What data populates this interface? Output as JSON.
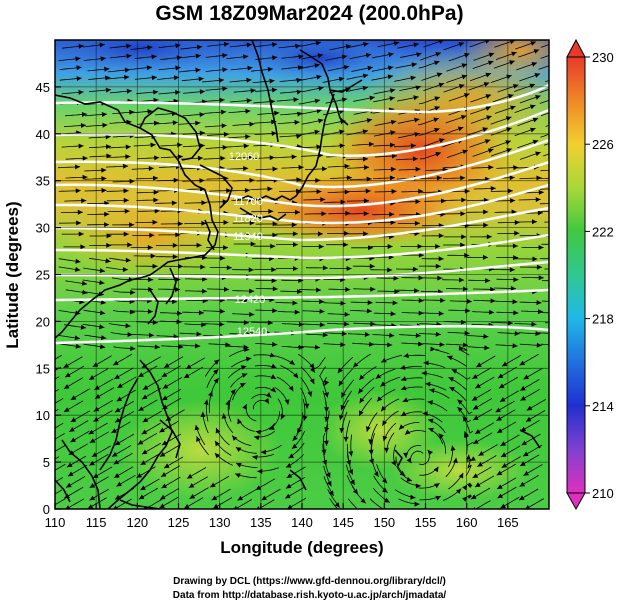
{
  "title": "GSM 18Z09Mar2024 (200.0hPa)",
  "xlabel": "Longitude (degrees)",
  "ylabel": "Latitude  (degrees)",
  "credit_line1": "Drawing by DCL (https://www.gfd-dennou.org/library/dcl/)",
  "credit_line2": "Data from http://database.rish.kyoto-u.ac.jp/arch/jmadata/",
  "colors": {
    "land_outline": "#000000",
    "contour": "#ffffff",
    "streamline": "#000000"
  },
  "chart_data": {
    "type": "heatmap",
    "xlim": [
      110,
      170
    ],
    "ylim": [
      0,
      50
    ],
    "x_ticks": [
      "110",
      "115",
      "120",
      "125",
      "130",
      "135",
      "140",
      "145",
      "150",
      "155",
      "160",
      "165"
    ],
    "y_ticks": [
      "0",
      "5",
      "10",
      "15",
      "20",
      "25",
      "30",
      "35",
      "40",
      "45"
    ],
    "colorbar": {
      "min": 210,
      "max": 230,
      "ticks": [
        "210",
        "214",
        "218",
        "222",
        "226",
        "230"
      ]
    },
    "grid": true,
    "legend": "right",
    "contour_labels": [
      "12060",
      "11700",
      "11820",
      "11940",
      "12420",
      "12540"
    ]
  }
}
